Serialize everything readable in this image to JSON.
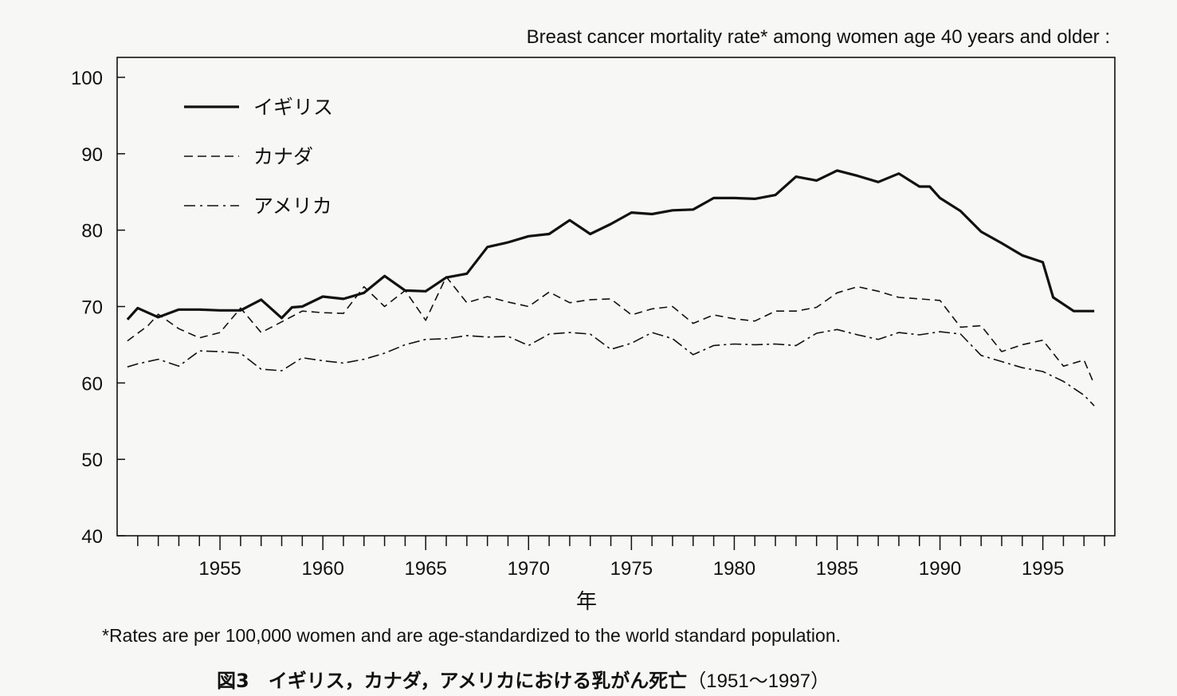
{
  "chart_data": {
    "type": "line",
    "title": "Breast cancer mortality rate* among women age 40 years and older :",
    "xlabel": "年",
    "ylabel": "",
    "xlim": [
      1950,
      1998.5
    ],
    "ylim": [
      40,
      100
    ],
    "y_ticks": [
      40,
      50,
      60,
      70,
      80,
      90,
      100
    ],
    "x_tick_labels": [
      1955,
      1960,
      1965,
      1970,
      1975,
      1980,
      1985,
      1990,
      1995
    ],
    "grid": false,
    "legend_placement": "top-left",
    "series": [
      {
        "name": "イギリス",
        "style": "solid",
        "x": [
          1950.5,
          1951,
          1952,
          1953,
          1954,
          1955,
          1956,
          1957,
          1958,
          1958.5,
          1959,
          1960,
          1961,
          1962,
          1963,
          1964,
          1965,
          1966,
          1967,
          1968,
          1969,
          1970,
          1971,
          1972,
          1973,
          1974,
          1975,
          1976,
          1977,
          1978,
          1979,
          1980,
          1981,
          1982,
          1983,
          1984,
          1985,
          1986,
          1987,
          1988,
          1989,
          1989.5,
          1990,
          1991,
          1992,
          1993,
          1994,
          1995,
          1995.5,
          1996.5,
          1997.5
        ],
        "values": [
          68.3,
          69.8,
          68.6,
          69.6,
          69.6,
          69.5,
          69.5,
          70.9,
          68.5,
          69.9,
          70.0,
          71.3,
          71.0,
          71.8,
          74.0,
          72.1,
          72.0,
          73.8,
          74.3,
          77.8,
          78.4,
          79.2,
          79.5,
          81.3,
          79.5,
          80.8,
          82.3,
          82.1,
          82.6,
          82.7,
          84.2,
          84.2,
          84.1,
          84.6,
          87.0,
          86.5,
          87.8,
          87.1,
          86.3,
          87.4,
          85.7,
          85.7,
          84.2,
          82.5,
          79.8,
          78.3,
          76.7,
          75.8,
          71.2,
          69.4,
          69.4
        ]
      },
      {
        "name": "カナダ",
        "style": "dashed",
        "x": [
          1950.5,
          1951.5,
          1952,
          1953,
          1954,
          1955,
          1956,
          1957,
          1958,
          1959,
          1960,
          1961,
          1962,
          1963,
          1964,
          1965,
          1966,
          1967,
          1968,
          1969,
          1970,
          1971,
          1972,
          1973,
          1974,
          1975,
          1976,
          1977,
          1978,
          1979,
          1980,
          1981,
          1982,
          1983,
          1984,
          1985,
          1986,
          1987,
          1988,
          1989,
          1990,
          1991,
          1992,
          1993,
          1994,
          1995,
          1996,
          1997,
          1997.5
        ],
        "values": [
          65.5,
          67.5,
          69.0,
          67.1,
          65.9,
          66.6,
          69.8,
          66.6,
          68.0,
          69.4,
          69.2,
          69.1,
          72.6,
          70.0,
          72.1,
          68.2,
          73.9,
          70.5,
          71.3,
          70.6,
          70.0,
          71.9,
          70.5,
          70.9,
          71.0,
          68.9,
          69.7,
          70.0,
          67.8,
          68.9,
          68.4,
          68.1,
          69.4,
          69.4,
          69.9,
          71.8,
          72.6,
          72.0,
          71.2,
          71.0,
          70.8,
          67.3,
          67.5,
          64.1,
          65.0,
          65.6,
          62.2,
          63.0,
          59.8
        ]
      },
      {
        "name": "アメリカ",
        "style": "dashdot",
        "x": [
          1950.5,
          1951,
          1952,
          1953,
          1954,
          1955,
          1956,
          1957,
          1958,
          1959,
          1960,
          1961,
          1962,
          1963,
          1964,
          1965,
          1966,
          1967,
          1968,
          1969,
          1970,
          1971,
          1972,
          1973,
          1974,
          1975,
          1976,
          1977,
          1978,
          1979,
          1980,
          1981,
          1982,
          1983,
          1984,
          1985,
          1986,
          1987,
          1988,
          1989,
          1990,
          1991,
          1992,
          1993,
          1994,
          1995,
          1996,
          1997,
          1997.5
        ],
        "values": [
          62.1,
          62.5,
          63.1,
          62.2,
          64.2,
          64.1,
          63.9,
          61.8,
          61.6,
          63.3,
          62.9,
          62.6,
          63.1,
          63.9,
          65.0,
          65.7,
          65.8,
          66.2,
          66.0,
          66.1,
          64.9,
          66.4,
          66.6,
          66.4,
          64.4,
          65.2,
          66.6,
          65.8,
          63.7,
          64.9,
          65.1,
          65.0,
          65.1,
          64.9,
          66.5,
          67.0,
          66.3,
          65.7,
          66.6,
          66.3,
          66.7,
          66.4,
          63.6,
          62.8,
          62.0,
          61.5,
          60.2,
          58.4,
          57.0
        ]
      }
    ]
  },
  "footnote": "*Rates are per 100,000 women and are age-standardized to the world standard population.",
  "caption": {
    "label": "図3　イギリス，カナダ，アメリカにおける乳がん死亡",
    "range": "（1951～1997）"
  }
}
